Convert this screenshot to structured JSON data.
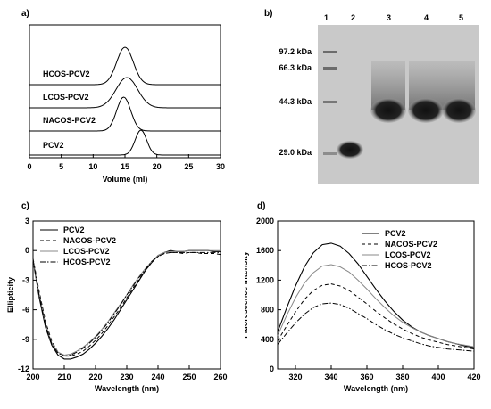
{
  "panels": {
    "a": {
      "label": "a)"
    },
    "b": {
      "label": "b)"
    },
    "c": {
      "label": "c)"
    },
    "d": {
      "label": "d)"
    }
  },
  "gel": {
    "lanes": [
      "1",
      "2",
      "3",
      "4",
      "5"
    ],
    "markers": [
      "97.2 kDa",
      "66.3 kDa",
      "44.3 kDa",
      "29.0 kDa"
    ]
  },
  "chart_data": [
    {
      "type": "line",
      "panel": "a",
      "xlabel": "Volume (ml)",
      "ylabel": "",
      "xlim": [
        0,
        30
      ],
      "xticks": [
        0,
        5,
        10,
        15,
        20,
        25,
        30
      ],
      "series": [
        {
          "name": "HCOS-PCV2",
          "peak_x": 15.0
        },
        {
          "name": "LCOS-PCV2",
          "peak_x": 15.3
        },
        {
          "name": "NACOS-PCV2",
          "peak_x": 14.8
        },
        {
          "name": "PCV2",
          "peak_x": 17.5
        }
      ]
    },
    {
      "type": "line",
      "panel": "c",
      "xlabel": "Wavelength (nm)",
      "ylabel": "Ellipticity",
      "xlim": [
        200,
        260
      ],
      "ylim": [
        -12,
        3
      ],
      "xticks": [
        200,
        210,
        220,
        230,
        240,
        250,
        260
      ],
      "yticks": [
        3,
        0,
        -3,
        -6,
        -9,
        -12
      ],
      "x": [
        200,
        202,
        204,
        206,
        208,
        210,
        212,
        214,
        216,
        218,
        220,
        222,
        224,
        226,
        228,
        230,
        232,
        234,
        236,
        238,
        240,
        242,
        244,
        246,
        248,
        250,
        252,
        254,
        256,
        258,
        260
      ],
      "series": [
        {
          "name": "PCV2",
          "style": "solid",
          "values": [
            -1.0,
            -4.8,
            -7.8,
            -9.6,
            -10.6,
            -11.0,
            -11.0,
            -10.8,
            -10.5,
            -10.0,
            -9.4,
            -8.7,
            -7.9,
            -7.0,
            -6.0,
            -5.0,
            -4.0,
            -3.0,
            -2.0,
            -1.2,
            -0.5,
            -0.2,
            0.0,
            -0.1,
            -0.1,
            0.0,
            0.0,
            0.0,
            0.0,
            -0.1,
            -0.1
          ]
        },
        {
          "name": "NACOS-PCV2",
          "style": "dashed",
          "values": [
            -0.8,
            -4.2,
            -7.2,
            -9.2,
            -10.3,
            -10.7,
            -10.7,
            -10.5,
            -10.2,
            -9.7,
            -9.1,
            -8.4,
            -7.6,
            -6.7,
            -5.8,
            -4.8,
            -3.8,
            -2.9,
            -2.0,
            -1.2,
            -0.6,
            -0.3,
            -0.2,
            -0.2,
            -0.3,
            -0.2,
            -0.2,
            -0.3,
            -0.3,
            -0.3,
            -0.4
          ]
        },
        {
          "name": "LCOS-PCV2",
          "style": "gray",
          "values": [
            -0.9,
            -4.5,
            -7.5,
            -9.4,
            -10.3,
            -10.6,
            -10.5,
            -10.2,
            -9.8,
            -9.3,
            -8.7,
            -8.0,
            -7.2,
            -6.3,
            -5.4,
            -4.5,
            -3.5,
            -2.6,
            -1.8,
            -1.1,
            -0.5,
            -0.2,
            -0.1,
            -0.1,
            -0.1,
            0.0,
            0.0,
            0.0,
            0.0,
            0.0,
            0.0
          ]
        },
        {
          "name": "HCOS-PCV2",
          "style": "dashdot",
          "values": [
            -0.9,
            -4.6,
            -7.6,
            -9.5,
            -10.4,
            -10.7,
            -10.6,
            -10.3,
            -9.9,
            -9.4,
            -8.8,
            -8.1,
            -7.3,
            -6.4,
            -5.5,
            -4.5,
            -3.6,
            -2.7,
            -1.9,
            -1.1,
            -0.6,
            -0.3,
            -0.2,
            -0.2,
            -0.2,
            -0.2,
            -0.2,
            -0.2,
            -0.2,
            -0.2,
            -0.2
          ]
        }
      ]
    },
    {
      "type": "line",
      "panel": "d",
      "xlabel": "Wavelength (nm)",
      "ylabel": "Fluorescence Intensity",
      "xlim": [
        310,
        420
      ],
      "ylim": [
        0,
        2000
      ],
      "xticks": [
        320,
        340,
        360,
        380,
        400,
        420
      ],
      "yticks": [
        0,
        400,
        800,
        1200,
        1600,
        2000
      ],
      "x": [
        310,
        315,
        320,
        325,
        330,
        335,
        340,
        345,
        350,
        355,
        360,
        365,
        370,
        375,
        380,
        385,
        390,
        395,
        400,
        405,
        410,
        415,
        420
      ],
      "series": [
        {
          "name": "PCV2",
          "style": "solid",
          "values": [
            500,
            820,
            1120,
            1380,
            1570,
            1680,
            1700,
            1660,
            1560,
            1420,
            1250,
            1080,
            920,
            780,
            660,
            570,
            500,
            450,
            410,
            370,
            340,
            310,
            290
          ]
        },
        {
          "name": "NACOS-PCV2",
          "style": "dashed",
          "values": [
            380,
            580,
            770,
            940,
            1060,
            1130,
            1150,
            1120,
            1060,
            970,
            880,
            780,
            690,
            610,
            540,
            480,
            430,
            390,
            360,
            330,
            310,
            290,
            270
          ]
        },
        {
          "name": "LCOS-PCV2",
          "style": "gray",
          "values": [
            450,
            720,
            960,
            1160,
            1300,
            1390,
            1410,
            1380,
            1310,
            1200,
            1080,
            950,
            830,
            720,
            630,
            560,
            500,
            450,
            410,
            370,
            340,
            320,
            300
          ]
        },
        {
          "name": "HCOS-PCV2",
          "style": "dashdot",
          "values": [
            330,
            480,
            620,
            740,
            830,
            880,
            890,
            870,
            820,
            750,
            680,
            600,
            530,
            470,
            420,
            380,
            340,
            310,
            290,
            270,
            260,
            250,
            240
          ]
        }
      ]
    }
  ]
}
